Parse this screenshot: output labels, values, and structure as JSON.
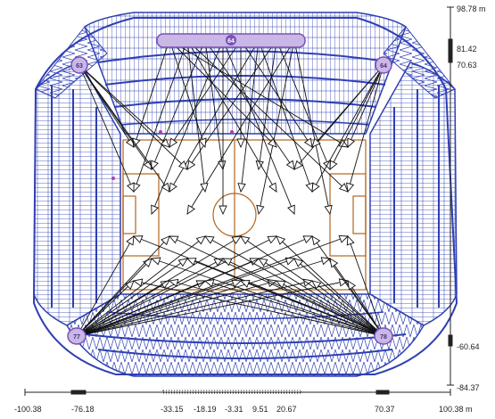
{
  "colors": {
    "structure": "#2e3fb3",
    "field": "#b5651d",
    "rays": "#111111",
    "mast": "#7a52b5",
    "mast_fill": "#c9b7e6",
    "axis": "#222222"
  },
  "masts": {
    "top_center": "64",
    "top_left": "63",
    "top_right": "64",
    "bottom_left": "77",
    "bottom_right": "78"
  },
  "x_axis": {
    "labels": [
      "-100.38",
      "-76.18",
      "-33.15",
      "-18.19",
      "-3.31",
      "9.51",
      "20.67",
      "70.37",
      "100.38 m"
    ]
  },
  "y_axis": {
    "labels": [
      "98.78 m",
      "81.42",
      "70.63",
      "-60.64",
      "-84.37"
    ]
  }
}
